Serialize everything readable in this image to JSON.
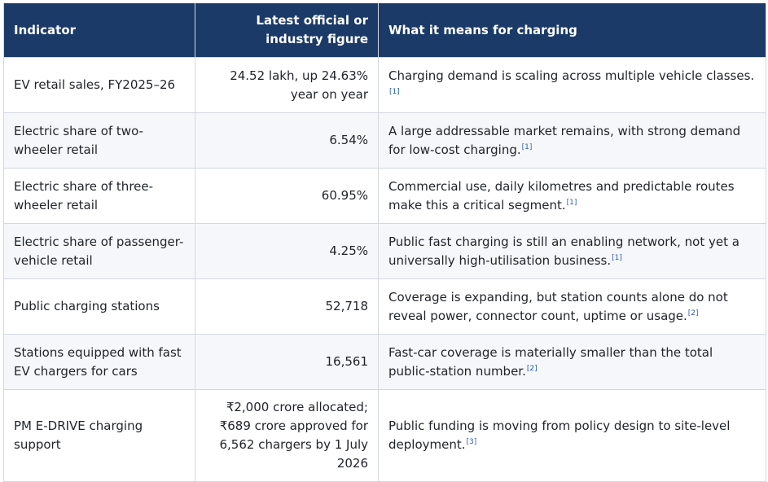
{
  "headers": [
    "Indicator",
    "Latest official or industry figure",
    "What it means for charging"
  ],
  "rows": [
    {
      "indicator": "EV retail sales, FY2025–26",
      "figure": "24.52 lakh, up 24.63% year on year",
      "meaning": "Charging demand is scaling across multiple vehicle classes.",
      "ref": "[1]"
    },
    {
      "indicator": "Electric share of two-wheeler retail",
      "figure": "6.54%",
      "meaning": "A large addressable market remains, with strong demand for low-cost charging.",
      "ref": "[1]"
    },
    {
      "indicator": "Electric share of three-wheeler retail",
      "figure": "60.95%",
      "meaning": "Commercial use, daily kilometres and predictable routes make this a critical segment.",
      "ref": "[1]"
    },
    {
      "indicator": "Electric share of passenger-vehicle retail",
      "figure": "4.25%",
      "meaning": "Public fast charging is still an enabling network, not yet a universally high-utilisation business.",
      "ref": "[1]"
    },
    {
      "indicator": "Public charging stations",
      "figure": "52,718",
      "meaning": "Coverage is expanding, but station counts alone do not reveal power, connector count, uptime or usage.",
      "ref": "[2]"
    },
    {
      "indicator": "Stations equipped with fast EV chargers for cars",
      "figure": "16,561",
      "meaning": "Fast-car coverage is materially smaller than the total public-station number.",
      "ref": "[2]"
    },
    {
      "indicator": "PM E-DRIVE charging support",
      "figure": "₹2,000 crore allocated; ₹689 crore approved for 6,562 chargers by 1 July 2026",
      "meaning": "Public funding is moving from policy design to site-level deployment.",
      "ref": "[3]"
    }
  ]
}
